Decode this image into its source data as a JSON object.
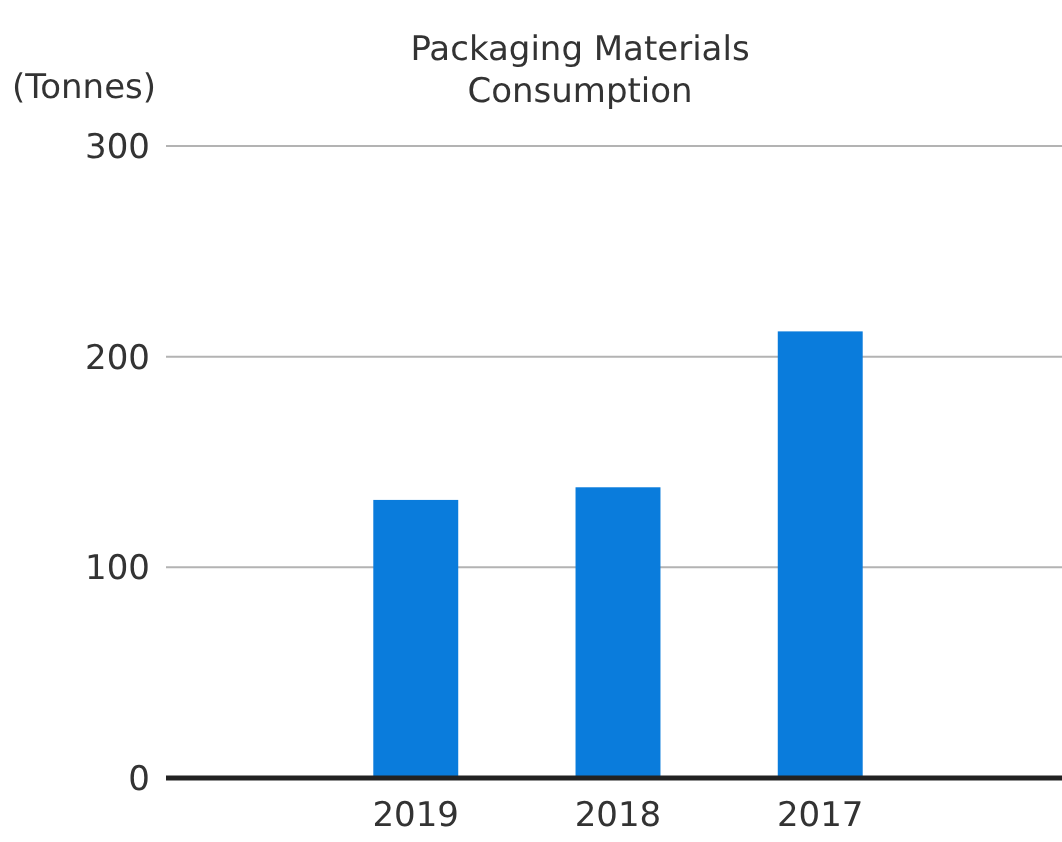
{
  "chart_data": {
    "type": "bar",
    "title": "Packaging Materials Consumption",
    "ylabel": "(Tonnes)",
    "categories": [
      "2019",
      "2018",
      "2017"
    ],
    "values": [
      132,
      138,
      212
    ],
    "color": "#0a7cdc",
    "ylim": [
      0,
      300
    ],
    "yticks": [
      0,
      100,
      200,
      300
    ],
    "grid": "y"
  }
}
